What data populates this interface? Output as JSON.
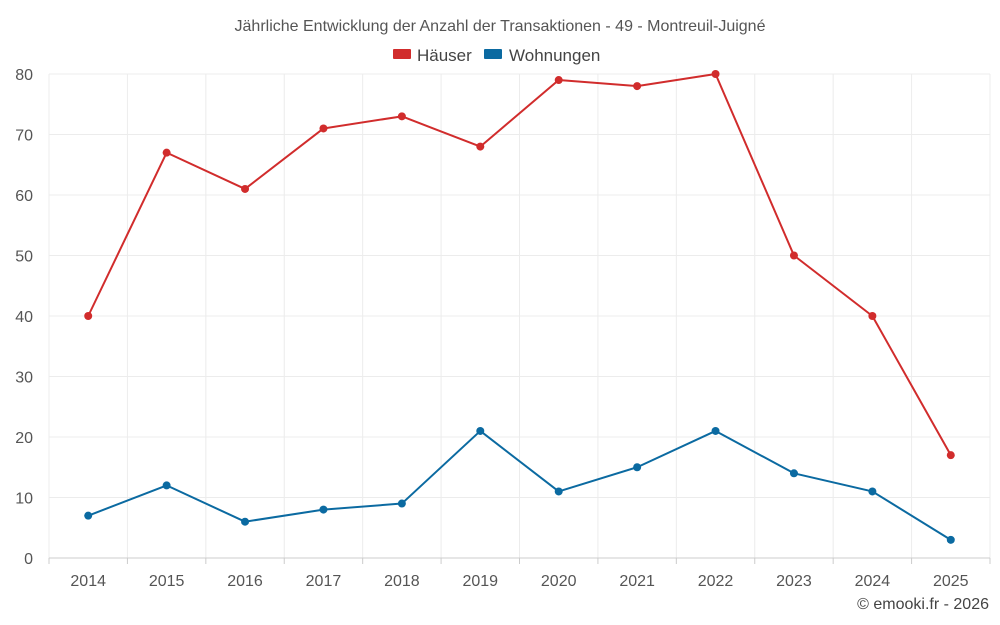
{
  "chart_data": {
    "type": "line",
    "title": "Jährliche Entwicklung der Anzahl der Transaktionen - 49 - Montreuil-Juigné",
    "categories": [
      "2014",
      "2015",
      "2016",
      "2017",
      "2018",
      "2019",
      "2020",
      "2021",
      "2022",
      "2023",
      "2024",
      "2025"
    ],
    "series": [
      {
        "name": "Häuser",
        "color": "#d12c2c",
        "values": [
          40,
          67,
          61,
          71,
          73,
          68,
          79,
          78,
          80,
          50,
          40,
          17
        ]
      },
      {
        "name": "Wohnungen",
        "color": "#0b6aa1",
        "values": [
          7,
          12,
          6,
          8,
          9,
          21,
          11,
          15,
          21,
          14,
          11,
          3
        ]
      }
    ],
    "ylim": [
      0,
      80
    ],
    "yticks": [
      "0",
      "10",
      "20",
      "30",
      "40",
      "50",
      "60",
      "70",
      "80"
    ],
    "grid": true,
    "legend": "top-center",
    "credit": "© emooki.fr - 2026"
  }
}
